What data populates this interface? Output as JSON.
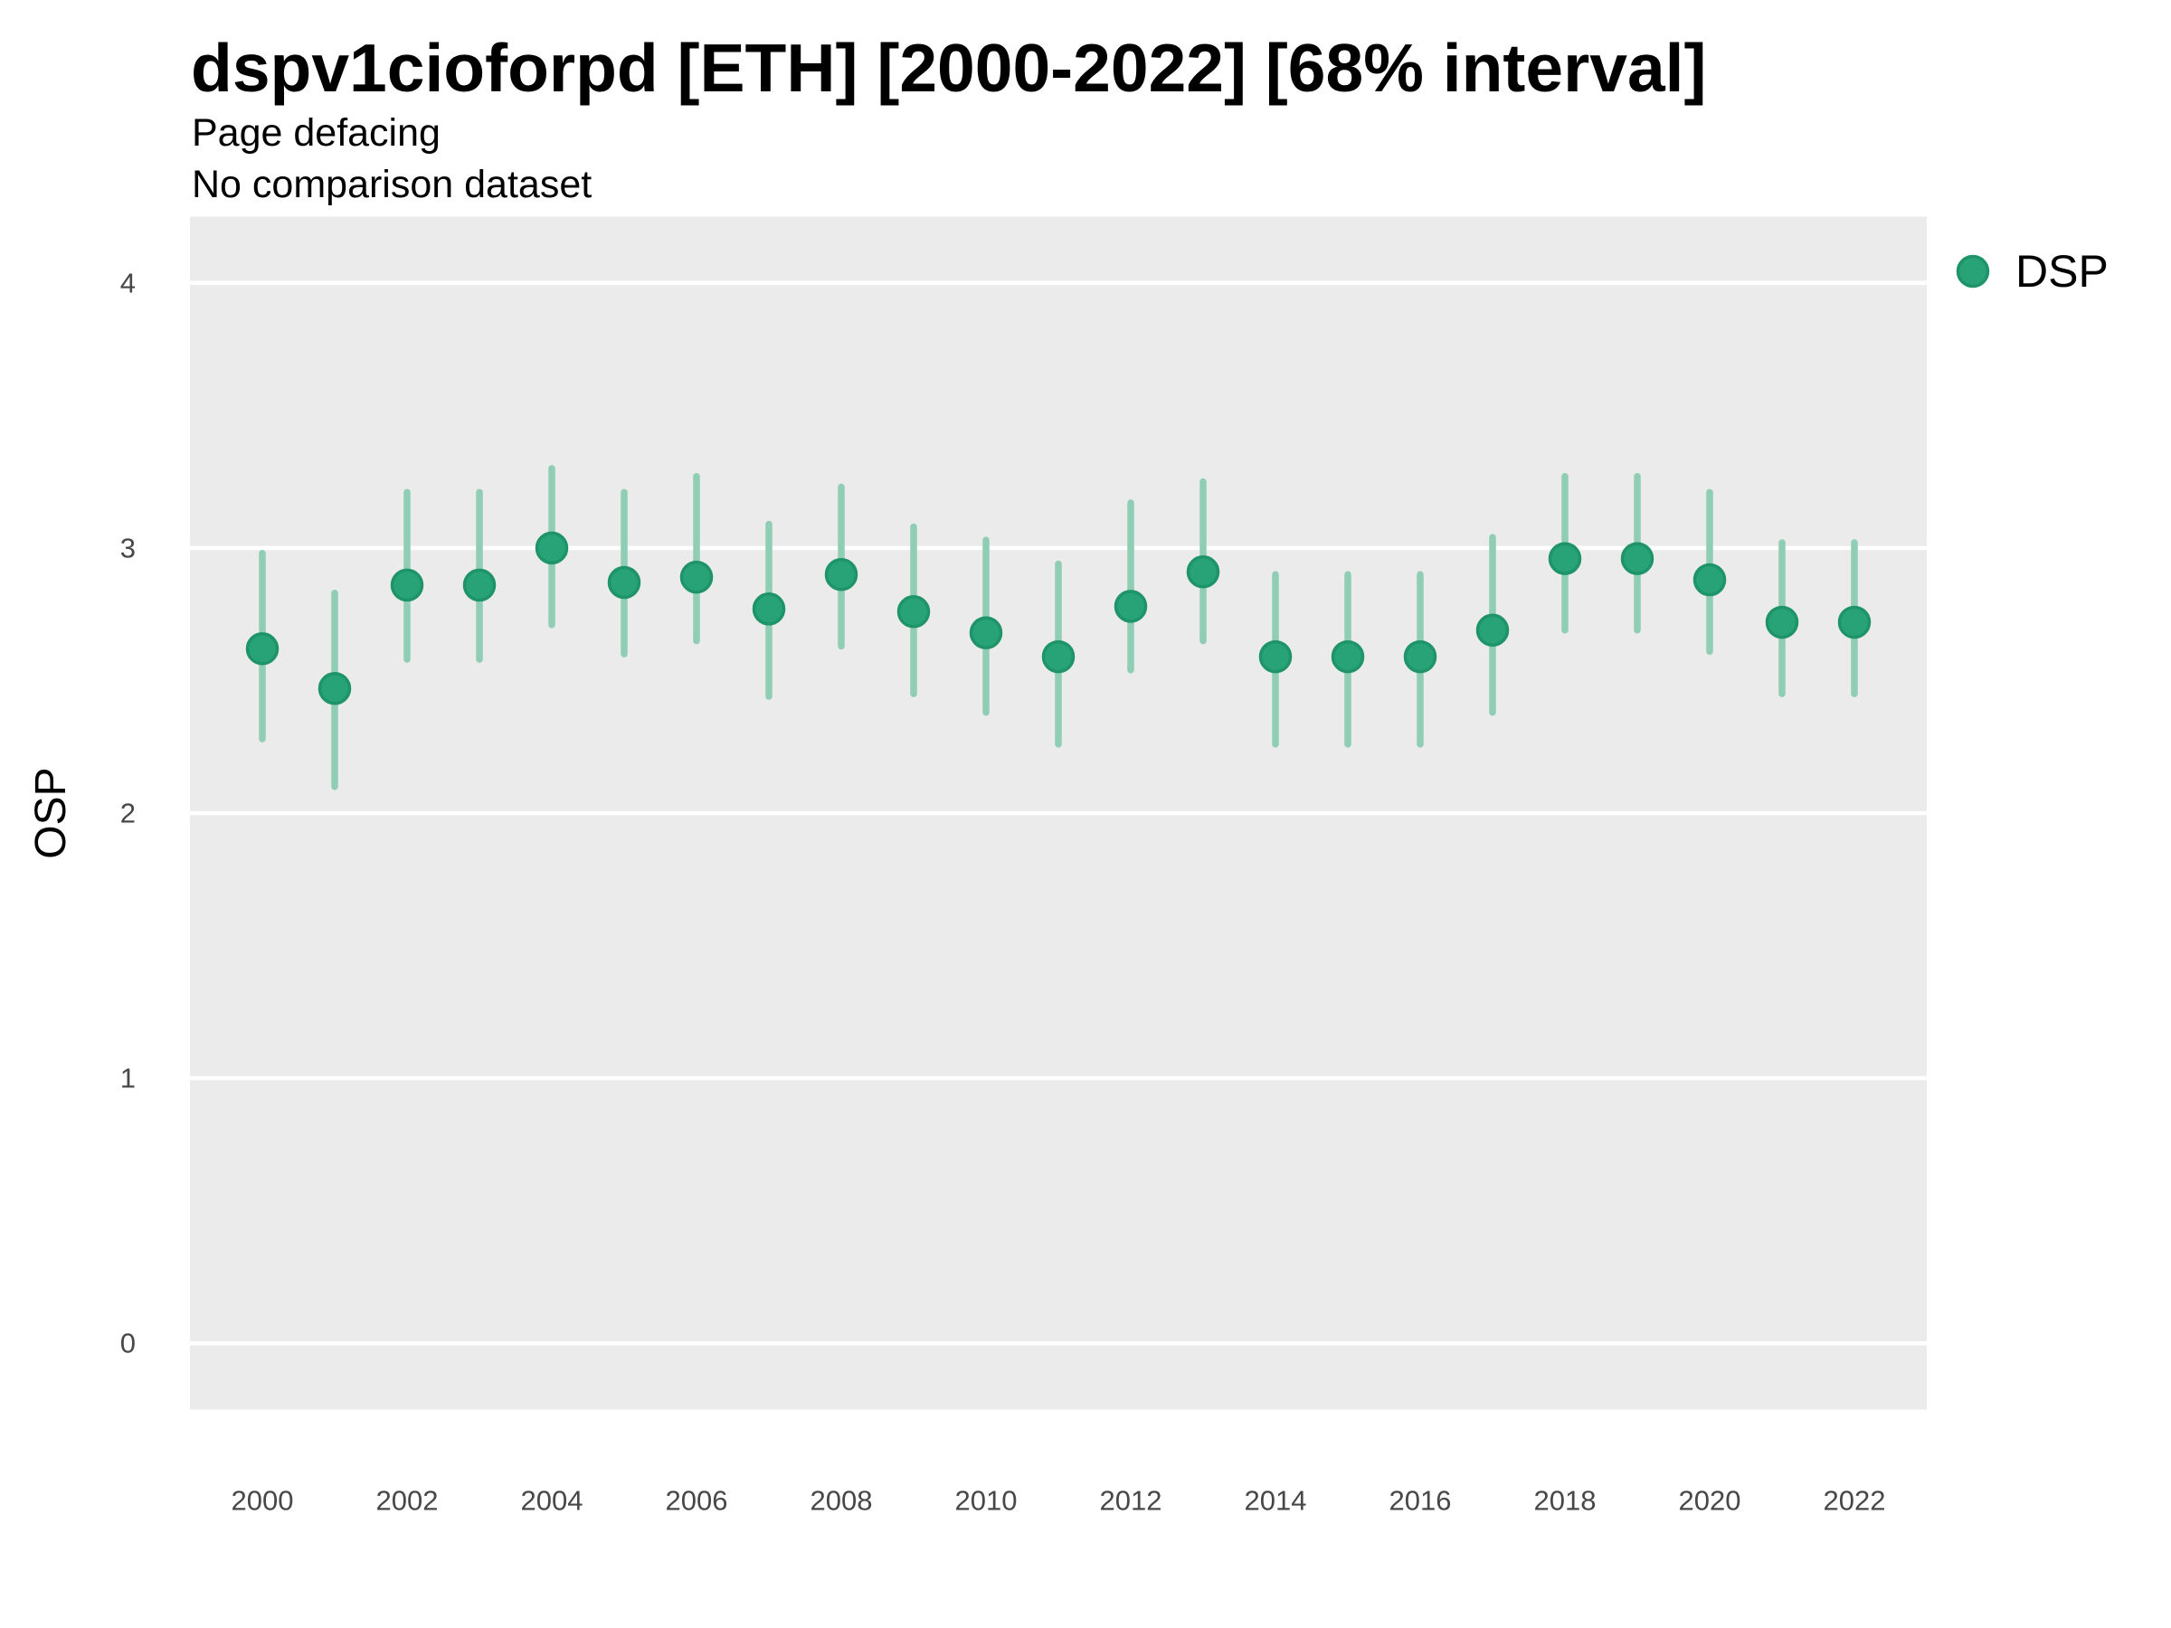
{
  "chart_data": {
    "type": "scatter",
    "title": "dspv1cioforpd [ETH] [2000-2022] [68% interval]",
    "subtitle": "Page defacing",
    "note": "No comparison dataset",
    "ylabel": "OSP",
    "interval": "68%",
    "legend": {
      "position": "right",
      "entries": [
        {
          "label": "DSP",
          "color": "#27A377"
        }
      ]
    },
    "x": [
      2000,
      2001,
      2002,
      2003,
      2004,
      2005,
      2006,
      2007,
      2008,
      2009,
      2010,
      2011,
      2012,
      2013,
      2014,
      2015,
      2016,
      2017,
      2018,
      2019,
      2020,
      2021,
      2022
    ],
    "series": [
      {
        "name": "DSP",
        "values": [
          2.62,
          2.47,
          2.86,
          2.86,
          3.0,
          2.87,
          2.89,
          2.77,
          2.9,
          2.76,
          2.68,
          2.59,
          2.78,
          2.91,
          2.59,
          2.59,
          2.59,
          2.69,
          2.96,
          2.96,
          2.88,
          2.72,
          2.72
        ],
        "lo": [
          2.28,
          2.1,
          2.58,
          2.58,
          2.71,
          2.6,
          2.65,
          2.44,
          2.63,
          2.45,
          2.38,
          2.26,
          2.54,
          2.65,
          2.26,
          2.26,
          2.26,
          2.38,
          2.69,
          2.69,
          2.61,
          2.45,
          2.45
        ],
        "hi": [
          2.98,
          2.83,
          3.21,
          3.21,
          3.3,
          3.21,
          3.27,
          3.09,
          3.23,
          3.08,
          3.03,
          2.94,
          3.17,
          3.25,
          2.9,
          2.9,
          2.9,
          3.04,
          3.27,
          3.27,
          3.21,
          3.02,
          3.02
        ]
      }
    ],
    "x_ticks": [
      2000,
      2002,
      2004,
      2006,
      2008,
      2010,
      2012,
      2014,
      2016,
      2018,
      2020,
      2022
    ],
    "y_ticks": [
      0,
      1,
      2,
      3,
      4
    ],
    "xlim": [
      1999,
      2023
    ],
    "ylim": [
      -0.25,
      4.25
    ],
    "grid": "horizontal major gridlines only, white on grey panel",
    "colors": {
      "panel": "#EBEBEB",
      "gridline": "#FFFFFF",
      "point": "#27A377",
      "point_stroke": "#1E9468",
      "errorbar": "#8FCDB4",
      "tick_label": "#474747",
      "text": "#000000"
    }
  }
}
